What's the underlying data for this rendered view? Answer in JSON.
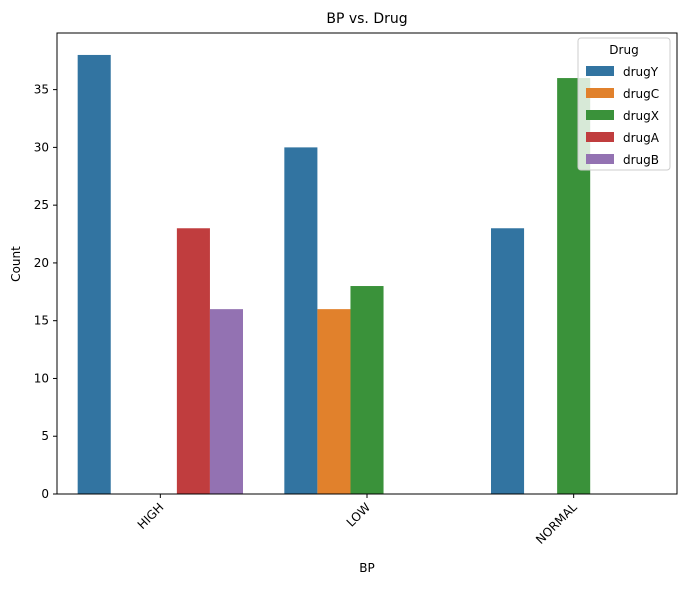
{
  "chart_data": {
    "type": "bar",
    "title": "BP vs. Drug",
    "xlabel": "BP",
    "ylabel": "Count",
    "categories": [
      "HIGH",
      "LOW",
      "NORMAL"
    ],
    "ylim": [
      0,
      39.9
    ],
    "yticks": [
      0,
      5,
      10,
      15,
      20,
      25,
      30,
      35
    ],
    "grid": false,
    "legend": {
      "title": "Drug",
      "placement": "top-right"
    },
    "series": [
      {
        "name": "drugY",
        "color": "#3274a1",
        "values": [
          38,
          30,
          23
        ]
      },
      {
        "name": "drugC",
        "color": "#e1812c",
        "values": [
          null,
          16,
          null
        ]
      },
      {
        "name": "drugX",
        "color": "#3a923a",
        "values": [
          null,
          18,
          36
        ]
      },
      {
        "name": "drugA",
        "color": "#c03d3e",
        "values": [
          23,
          null,
          null
        ]
      },
      {
        "name": "drugB",
        "color": "#9372b2",
        "values": [
          16,
          null,
          null
        ]
      }
    ]
  }
}
